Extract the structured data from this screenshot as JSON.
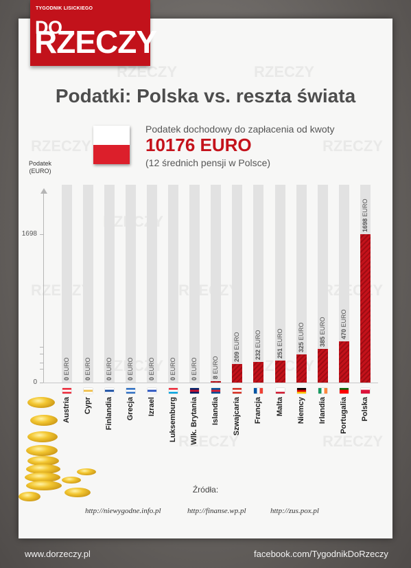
{
  "logo": {
    "subtitle": "TYGODNIK LISICKIEGO",
    "do": "DO",
    "name": "RZECZY"
  },
  "title": "Podatki: Polska vs. reszta świata",
  "info": {
    "line1": "Podatek dochodowy do zapłacenia od kwoty",
    "amount": "10176 EURO",
    "note": "(12 średnich pensji w Polsce)"
  },
  "axis": {
    "ylabel_1": "Podatek",
    "ylabel_2": "(EURO)",
    "tick_1698": "1698",
    "tick_0": "0"
  },
  "watermark": "RZECZY",
  "chart_data": {
    "type": "bar",
    "title": "Podatki: Polska vs. reszta świata",
    "ylabel": "Podatek (EURO)",
    "unit": "EURO",
    "ylim": [
      0,
      1698
    ],
    "categories": [
      "Austria",
      "Cypr",
      "Finlandia",
      "Grecja",
      "Izrael",
      "Luksemburg",
      "Wlk. Brytania",
      "Islandia",
      "Szwajcaria",
      "Francja",
      "Malta",
      "Niemcy",
      "Irlandia",
      "Portugalia",
      "Polska"
    ],
    "values": [
      0,
      0,
      0,
      0,
      0,
      0,
      0,
      8,
      209,
      232,
      251,
      325,
      385,
      470,
      1698
    ],
    "grid": false
  },
  "flags": [
    {
      "country": "Austria",
      "colors": [
        "#ed2939",
        "#ffffff",
        "#ed2939"
      ]
    },
    {
      "country": "Cypr",
      "colors": [
        "#ffffff",
        "#f0c04c",
        "#ffffff"
      ]
    },
    {
      "country": "Finlandia",
      "colors": [
        "#ffffff",
        "#1a4fa3",
        "#ffffff"
      ]
    },
    {
      "country": "Grecja",
      "colors": [
        "#2f6fc3",
        "#ffffff",
        "#2f6fc3"
      ]
    },
    {
      "country": "Izrael",
      "colors": [
        "#ffffff",
        "#2b55c0",
        "#ffffff"
      ]
    },
    {
      "country": "Luksemburg",
      "colors": [
        "#ed2939",
        "#ffffff",
        "#00a1de"
      ]
    },
    {
      "country": "Wlk. Brytania",
      "colors": [
        "#012169",
        "#c8102e",
        "#012169"
      ]
    },
    {
      "country": "Islandia",
      "colors": [
        "#02529c",
        "#dc1e35",
        "#02529c"
      ]
    },
    {
      "country": "Szwajcaria",
      "colors": [
        "#d52b1e",
        "#ffffff",
        "#d52b1e"
      ]
    },
    {
      "country": "Francja",
      "colors": [
        "#0055a4",
        "#ffffff",
        "#ef4135"
      ]
    },
    {
      "country": "Malta",
      "colors": [
        "#ffffff",
        "#ffffff",
        "#cf142b"
      ]
    },
    {
      "country": "Niemcy",
      "colors": [
        "#000000",
        "#dd0000",
        "#ffce00"
      ]
    },
    {
      "country": "Irlandia",
      "colors": [
        "#169b62",
        "#ffffff",
        "#ff883e"
      ]
    },
    {
      "country": "Portugalia",
      "colors": [
        "#006600",
        "#ff0000",
        "#ff0000"
      ]
    },
    {
      "country": "Polska",
      "colors": [
        "#ffffff",
        "#dc143c",
        "#dc143c"
      ]
    }
  ],
  "sources": {
    "heading": "Źródła:",
    "items": [
      "http://niewygodne.info.pl",
      "http://finanse.wp.pl",
      "http://zus.pox.pl"
    ]
  },
  "footer": {
    "left": "www.dorzeczy.pl",
    "right": "facebook.com/TygodnikDoRzeczy"
  },
  "colors": {
    "accent": "#c4121b",
    "track": "#e2e2e2",
    "title": "#4d4d4d"
  }
}
